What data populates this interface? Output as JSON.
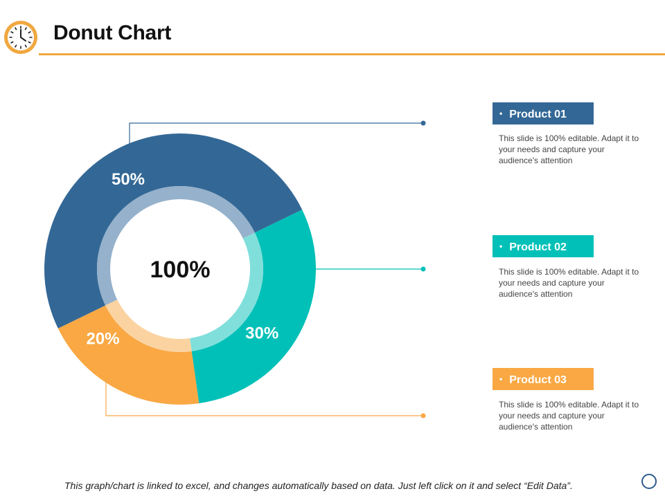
{
  "header": {
    "title": "Donut Chart",
    "icon": "clock-icon",
    "accent_color": "#f0a840"
  },
  "chart_data": {
    "type": "pie",
    "variant": "donut",
    "title": "Donut Chart",
    "center_label": "100%",
    "categories": [
      "Product 01",
      "Product 02",
      "Product 03"
    ],
    "values": [
      50,
      30,
      20
    ],
    "value_labels": [
      "50%",
      "30%",
      "20%"
    ],
    "colors": [
      "#336896",
      "#00c0b8",
      "#f9a844"
    ],
    "inner_ring_colors": [
      "#96b1cb",
      "#80dfdb",
      "#fbd3a1"
    ]
  },
  "legend": [
    {
      "label": "Product 01",
      "description": "This slide is 100% editable. Adapt it to your needs and capture your audience's attention",
      "color": "#336896"
    },
    {
      "label": "Product 02",
      "description": "This slide is 100% editable. Adapt it to your needs and capture your audience's attention",
      "color": "#00c0b8"
    },
    {
      "label": "Product 03",
      "description": "This slide is 100% editable. Adapt it to your needs and capture your audience's attention",
      "color": "#f9a844"
    }
  ],
  "footer": {
    "note": "This graph/chart is linked to excel, and changes automatically based on data. Just left click on it and select “Edit Data”."
  }
}
